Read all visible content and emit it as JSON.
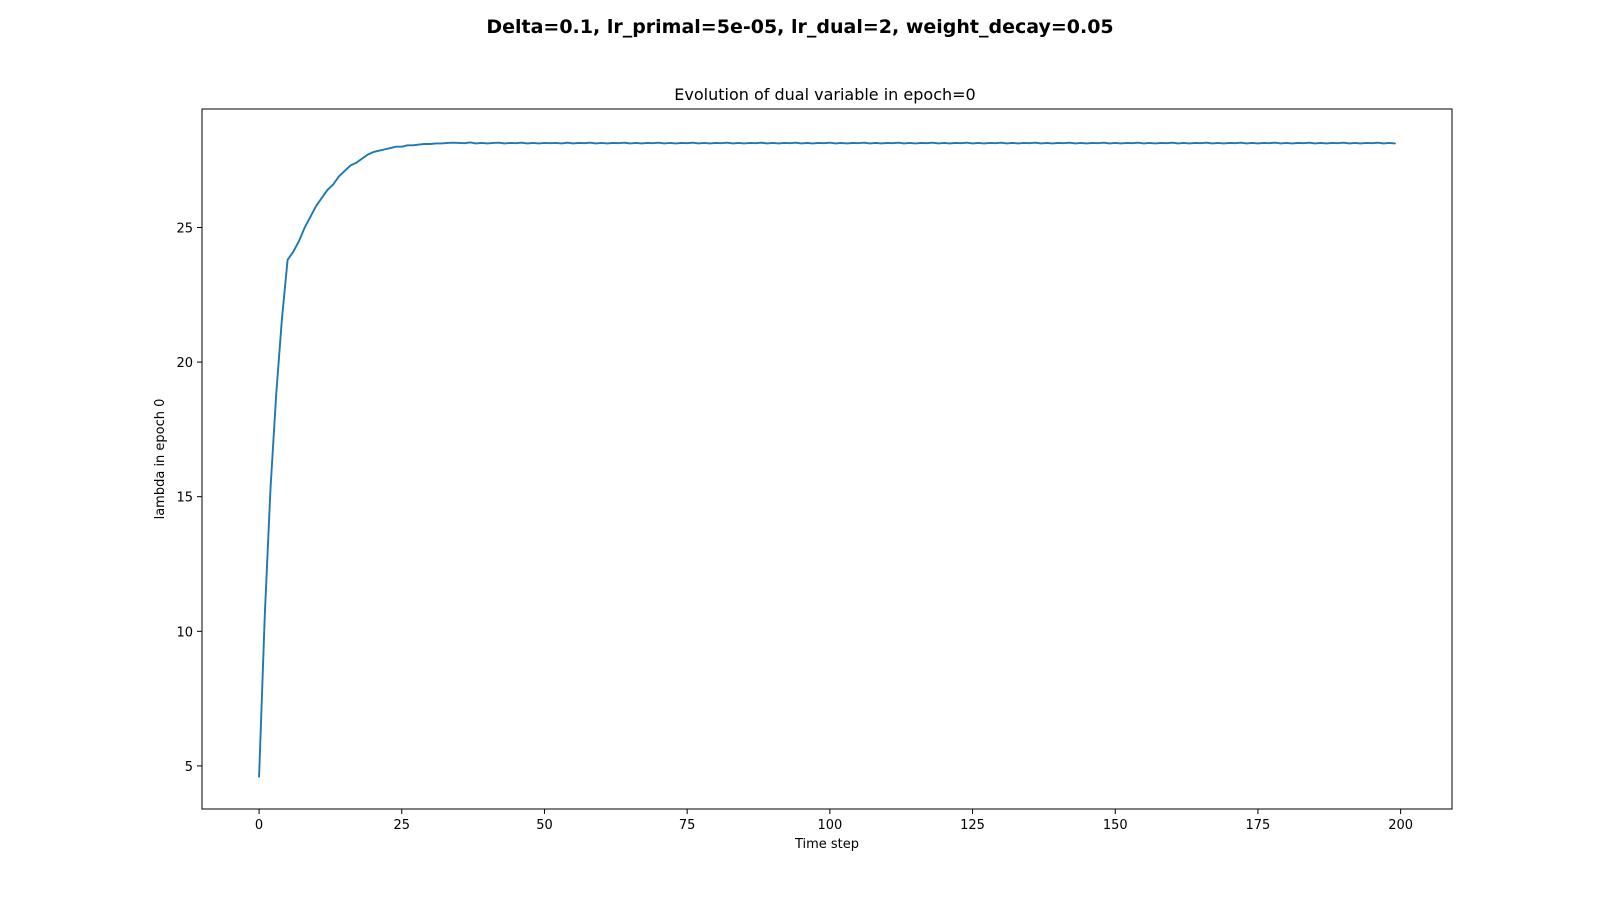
{
  "figure": {
    "suptitle": "Delta=0.1, lr_primal=5e-05, lr_dual=2, weight_decay=0.05"
  },
  "chart_data": {
    "type": "line",
    "title": "Evolution of dual variable in epoch=0",
    "xlabel": "Time step",
    "ylabel": "lambda in epoch 0",
    "xlim": [
      -10,
      209
    ],
    "ylim": [
      3.4,
      29.4
    ],
    "xticks": [
      0,
      25,
      50,
      75,
      100,
      125,
      150,
      175,
      200
    ],
    "yticks": [
      5,
      10,
      15,
      20,
      25
    ],
    "grid": false,
    "line_color": "#1f77b4",
    "series": [
      {
        "x_start": 0,
        "x_step": 1,
        "values": [
          4.6,
          10.6,
          15.3,
          18.8,
          21.6,
          23.8,
          24.1,
          24.5,
          25.0,
          25.4,
          25.8,
          26.1,
          26.4,
          26.6,
          26.9,
          27.1,
          27.3,
          27.4,
          27.55,
          27.7,
          27.8,
          27.85,
          27.9,
          27.95,
          28.0,
          28.0,
          28.05,
          28.05,
          28.08,
          28.1,
          28.1,
          28.12,
          28.12,
          28.14,
          28.15,
          28.14,
          28.13,
          28.16,
          28.12,
          28.14,
          28.12,
          28.14,
          28.15,
          28.12,
          28.14,
          28.13,
          28.15,
          28.12,
          28.14,
          28.12,
          28.14,
          28.13,
          28.14,
          28.12,
          28.15,
          28.12,
          28.14,
          28.13,
          28.15,
          28.12,
          28.14,
          28.12,
          28.14,
          28.13,
          28.15,
          28.12,
          28.14,
          28.12,
          28.14,
          28.13,
          28.15,
          28.12,
          28.14,
          28.12,
          28.14,
          28.13,
          28.15,
          28.12,
          28.14,
          28.12,
          28.14,
          28.13,
          28.15,
          28.12,
          28.14,
          28.12,
          28.14,
          28.13,
          28.15,
          28.12,
          28.14,
          28.12,
          28.14,
          28.13,
          28.15,
          28.12,
          28.14,
          28.12,
          28.14,
          28.13,
          28.15,
          28.12,
          28.14,
          28.12,
          28.14,
          28.13,
          28.15,
          28.12,
          28.14,
          28.12,
          28.14,
          28.13,
          28.15,
          28.12,
          28.14,
          28.12,
          28.14,
          28.13,
          28.15,
          28.12,
          28.14,
          28.12,
          28.14,
          28.13,
          28.15,
          28.12,
          28.14,
          28.12,
          28.14,
          28.13,
          28.15,
          28.12,
          28.14,
          28.12,
          28.14,
          28.13,
          28.15,
          28.12,
          28.14,
          28.12,
          28.14,
          28.13,
          28.15,
          28.12,
          28.14,
          28.12,
          28.14,
          28.13,
          28.15,
          28.12,
          28.14,
          28.12,
          28.14,
          28.13,
          28.15,
          28.12,
          28.14,
          28.12,
          28.14,
          28.13,
          28.15,
          28.12,
          28.14,
          28.12,
          28.14,
          28.13,
          28.15,
          28.12,
          28.14,
          28.12,
          28.14,
          28.13,
          28.15,
          28.12,
          28.14,
          28.12,
          28.14,
          28.13,
          28.15,
          28.12,
          28.14,
          28.12,
          28.14,
          28.13,
          28.15,
          28.12,
          28.14,
          28.12,
          28.14,
          28.13,
          28.15,
          28.12,
          28.14,
          28.12,
          28.14,
          28.13,
          28.15,
          28.12,
          28.14,
          28.12
        ]
      }
    ]
  }
}
